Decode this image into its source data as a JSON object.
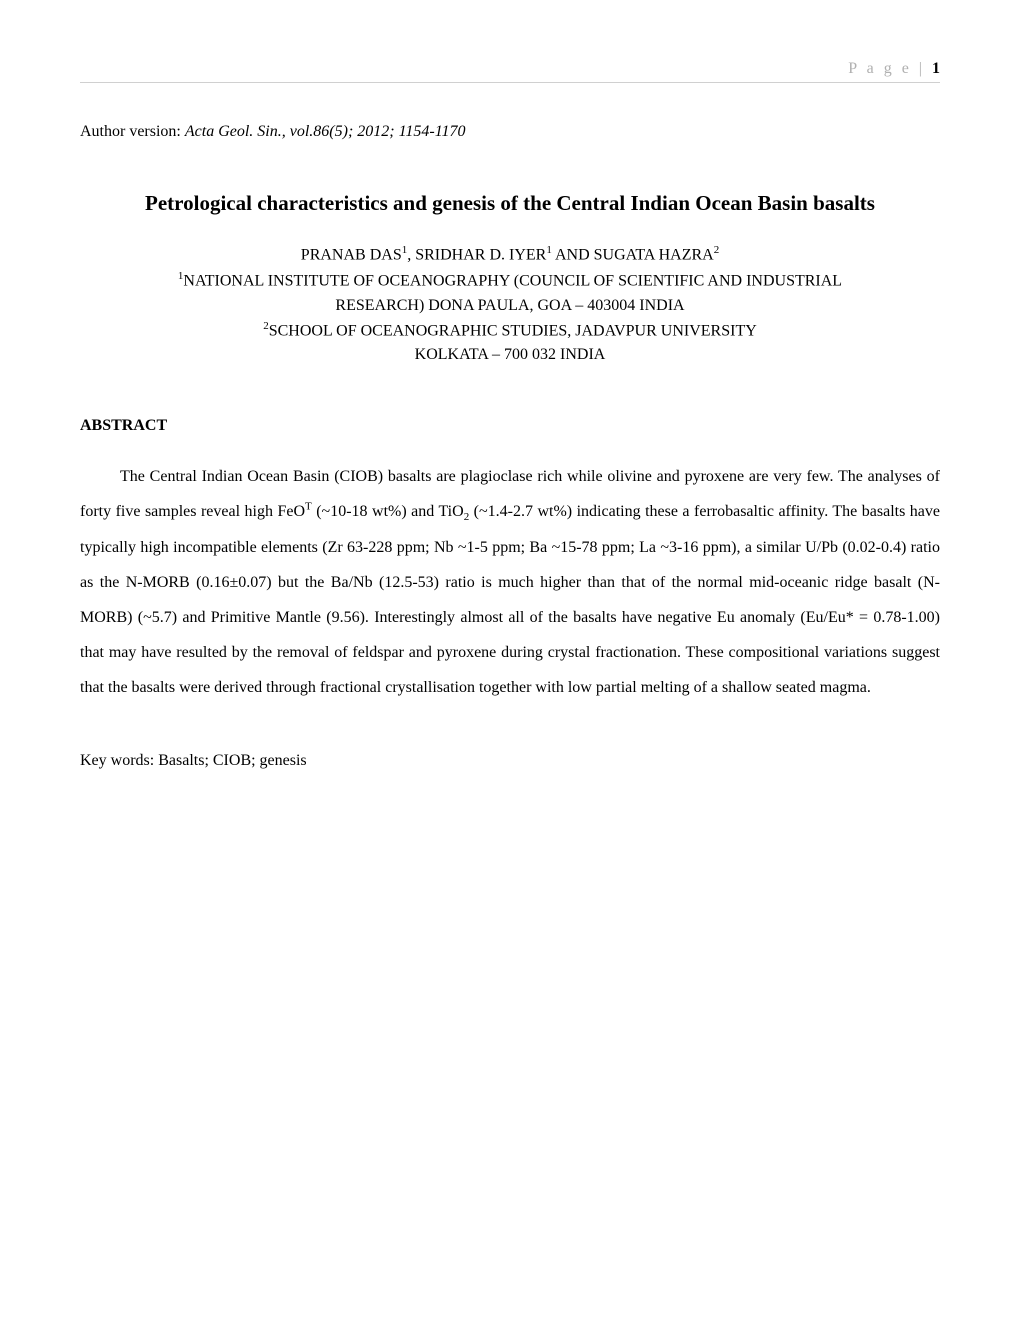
{
  "header": {
    "page_label": "P a g e",
    "separator": " | ",
    "page_number": "1"
  },
  "author_version": {
    "label": "Author version: ",
    "citation": "Acta Geol. Sin., vol.86(5); 2012; 1154-1170"
  },
  "title": "Petrological characteristics and genesis of the Central Indian Ocean Basin basalts",
  "authors": {
    "a1_name": "PRANAB DAS",
    "a1_sup": "1",
    "sep1": ", ",
    "a2_name": "SRIDHAR D. IYER",
    "a2_sup": "1",
    "sep2": " AND ",
    "a3_name": "SUGATA HAZRA",
    "a3_sup": "2"
  },
  "affiliations": {
    "aff1_sup": "1",
    "aff1_line1": "NATIONAL INSTITUTE OF OCEANOGRAPHY (COUNCIL OF SCIENTIFIC AND INDUSTRIAL",
    "aff1_line2": "RESEARCH) DONA PAULA, GOA – 403004 INDIA",
    "aff2_sup": "2",
    "aff2_line1": "SCHOOL OF OCEANOGRAPHIC STUDIES, JADAVPUR UNIVERSITY",
    "aff2_line2": "KOLKATA – 700 032 INDIA"
  },
  "abstract": {
    "heading": "ABSTRACT",
    "p1_a": "The Central Indian Ocean Basin (CIOB) basalts are plagioclase rich while olivine and pyroxene are very few. The analyses of forty five samples reveal high FeO",
    "p1_sup1": "T",
    "p1_b": " (~10-18 wt%) and TiO",
    "p1_sub1": "2",
    "p1_c": " (~1.4-2.7 wt%) indicating these a ferrobasaltic affinity. The basalts have typically high incompatible elements (Zr 63-228 ppm; Nb ~1-5 ppm; Ba ~15-78 ppm; La ~3-16 ppm), a similar U/Pb (0.02-0.4) ratio as the N-MORB (0.16±0.07) but the Ba/Nb (12.5-53) ratio is much higher than that of the normal mid-oceanic ridge basalt (N-MORB) (~5.7) and Primitive Mantle (9.56). Interestingly almost all of the basalts have negative Eu anomaly (Eu/Eu* = 0.78-1.00) that may have resulted by the removal of feldspar and pyroxene during crystal fractionation. These compositional variations suggest that the basalts were derived through fractional crystallisation together with low partial melting of a shallow seated magma."
  },
  "keywords": {
    "label": "Key words: ",
    "text": "Basalts; CIOB;  genesis"
  }
}
